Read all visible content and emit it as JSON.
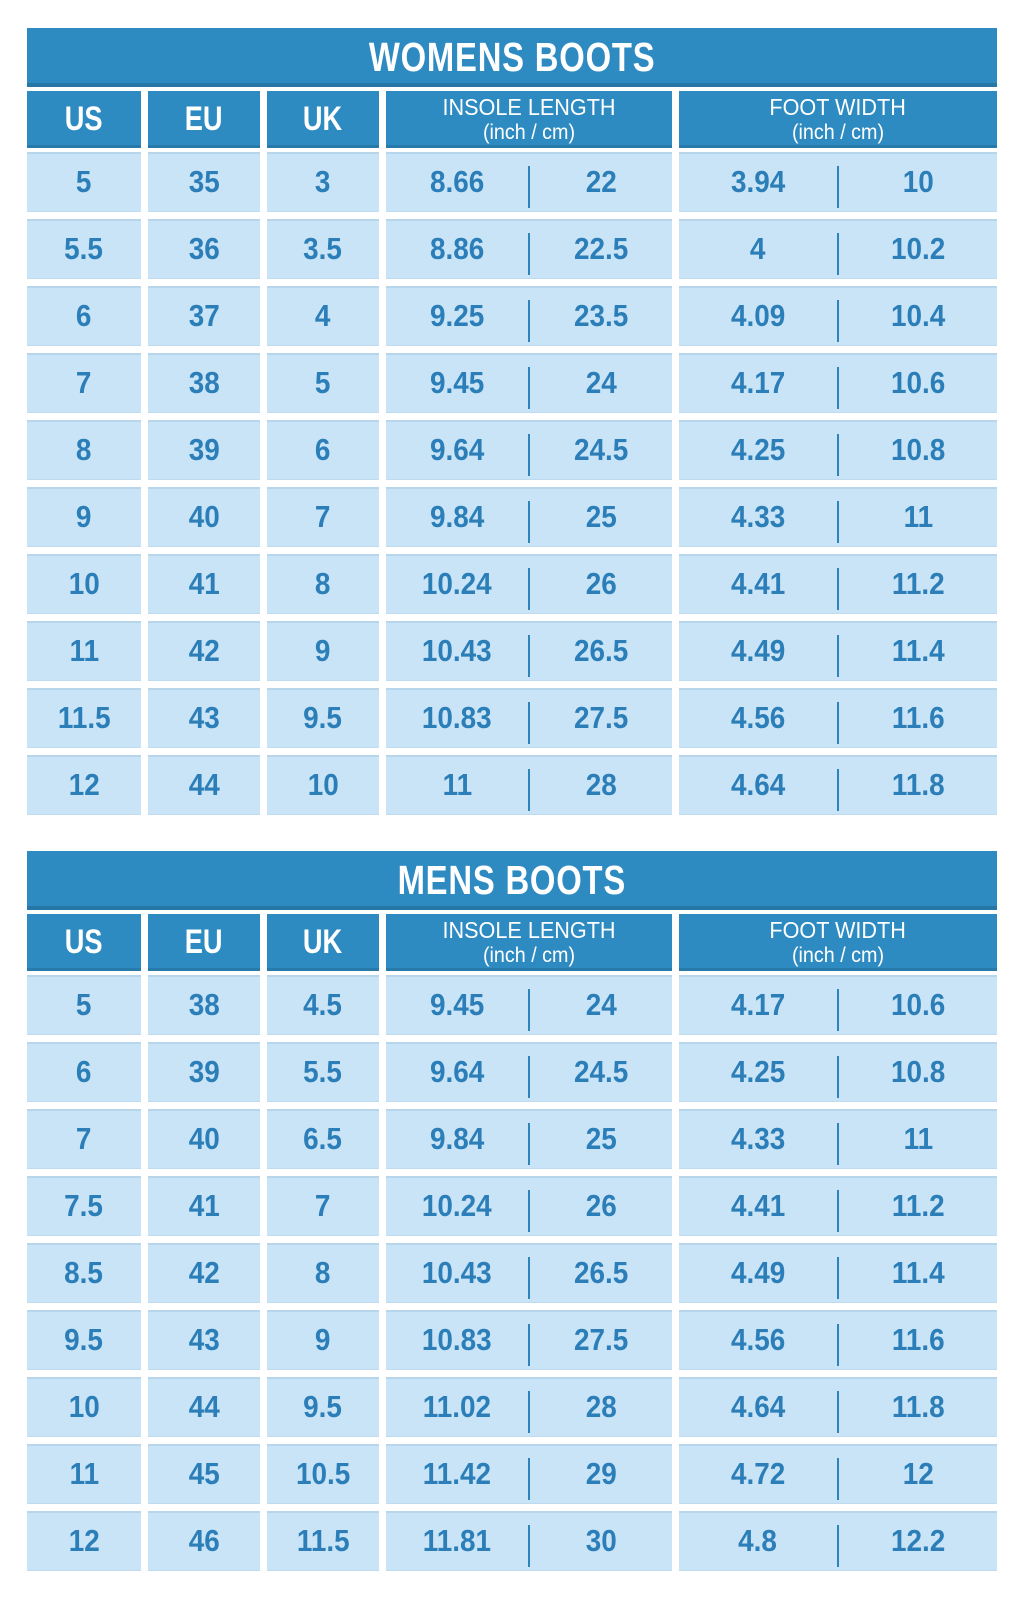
{
  "colors": {
    "header_bg": "#2e8bc2",
    "header_edge": "#25719e",
    "cell_bg": "#c9e4f6",
    "value_text": "#2b7eb8",
    "divider": "#2f83bb",
    "title_text": "#ffffff"
  },
  "tables": [
    {
      "title": "WOMENS BOOTS",
      "col_headers": [
        "US",
        "EU",
        "UK"
      ],
      "insole_header": {
        "title": "INSOLE LENGTH",
        "unit": "(inch / cm)"
      },
      "foot_header": {
        "title": "FOOT WIDTH",
        "unit": "(inch / cm)"
      }
    },
    {
      "title": "MENS BOOTS",
      "col_headers": [
        "US",
        "EU",
        "UK"
      ],
      "insole_header": {
        "title": "INSOLE LENGTH",
        "unit": "(inch / cm)"
      },
      "foot_header": {
        "title": "FOOT WIDTH",
        "unit": "(inch / cm)"
      }
    }
  ],
  "chart_data": [
    {
      "type": "table",
      "title": "WOMENS BOOTS",
      "columns": [
        "US",
        "EU",
        "UK",
        "Insole length (inch)",
        "Insole length (cm)",
        "Foot width (inch)",
        "Foot width (cm)"
      ],
      "rows": [
        [
          5,
          35,
          3,
          8.66,
          22,
          3.94,
          10
        ],
        [
          5.5,
          36,
          3.5,
          8.86,
          22.5,
          4,
          10.2
        ],
        [
          6,
          37,
          4,
          9.25,
          23.5,
          4.09,
          10.4
        ],
        [
          7,
          38,
          5,
          9.45,
          24,
          4.17,
          10.6
        ],
        [
          8,
          39,
          6,
          9.64,
          24.5,
          4.25,
          10.8
        ],
        [
          9,
          40,
          7,
          9.84,
          25,
          4.33,
          11
        ],
        [
          10,
          41,
          8,
          10.24,
          26,
          4.41,
          11.2
        ],
        [
          11,
          42,
          9,
          10.43,
          26.5,
          4.49,
          11.4
        ],
        [
          11.5,
          43,
          9.5,
          10.83,
          27.5,
          4.56,
          11.6
        ],
        [
          12,
          44,
          10,
          11,
          28,
          4.64,
          11.8
        ]
      ]
    },
    {
      "type": "table",
      "title": "MENS BOOTS",
      "columns": [
        "US",
        "EU",
        "UK",
        "Insole length (inch)",
        "Insole length (cm)",
        "Foot width (inch)",
        "Foot width (cm)"
      ],
      "rows": [
        [
          5,
          38,
          4.5,
          9.45,
          24,
          4.17,
          10.6
        ],
        [
          6,
          39,
          5.5,
          9.64,
          24.5,
          4.25,
          10.8
        ],
        [
          7,
          40,
          6.5,
          9.84,
          25,
          4.33,
          11
        ],
        [
          7.5,
          41,
          7,
          10.24,
          26,
          4.41,
          11.2
        ],
        [
          8.5,
          42,
          8,
          10.43,
          26.5,
          4.49,
          11.4
        ],
        [
          9.5,
          43,
          9,
          10.83,
          27.5,
          4.56,
          11.6
        ],
        [
          10,
          44,
          9.5,
          11.02,
          28,
          4.64,
          11.8
        ],
        [
          11,
          45,
          10.5,
          11.42,
          29,
          4.72,
          12
        ],
        [
          12,
          46,
          11.5,
          11.81,
          30,
          4.8,
          12.2
        ]
      ]
    }
  ]
}
